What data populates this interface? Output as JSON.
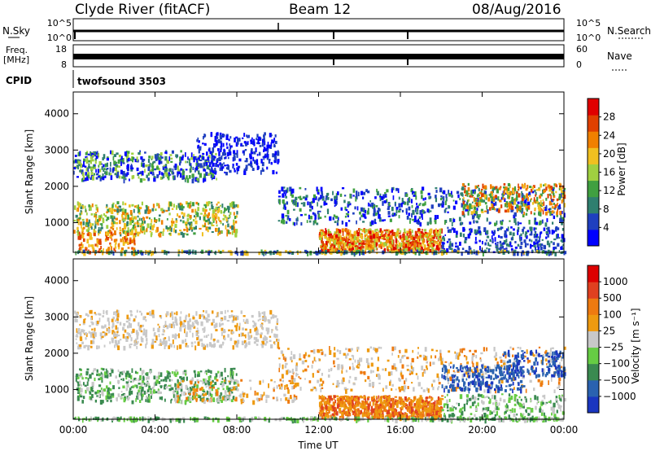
{
  "header": {
    "station": "Clyde River (fitACF)",
    "beam": "Beam 12",
    "date": "08/Aug/2016"
  },
  "panels": {
    "nsky_label": "N.Sky",
    "nsearch_label": "N.Search",
    "nsky_ticks": [
      "10^5",
      "10^0"
    ],
    "nsearch_ticks": [
      "10^5",
      "10^0"
    ],
    "freq_label_1": "Freq.",
    "freq_label_2": "[MHz]",
    "freq_ticks": [
      "18",
      "8"
    ],
    "nave_label": "Nave",
    "nave_ticks": [
      "60",
      "0"
    ],
    "cpid_label": "CPID",
    "cpid_value": "twofsound 3503"
  },
  "colors": {
    "power_scale": [
      "#0000ff",
      "#1f3fbf",
      "#2f7f6f",
      "#40a040",
      "#a0d040",
      "#f0c020",
      "#f08000",
      "#e04000",
      "#e00000"
    ],
    "velocity_scale": [
      "#1a36c0",
      "#2a62b0",
      "#3a8a50",
      "#66cc44",
      "#c8c8c8",
      "#ee9a10",
      "#ee7a10",
      "#e04020",
      "#dd0000"
    ]
  },
  "chart_data": [
    {
      "type": "heatmap",
      "title": "Power",
      "xlabel": "",
      "ylabel": "Slant Range [km]",
      "x_ticks": [
        "00:00",
        "04:00",
        "08:00",
        "12:00",
        "16:00",
        "20:00",
        "00:00"
      ],
      "y_ticks": [
        "1000",
        "2000",
        "3000",
        "4000"
      ],
      "xlim": [
        0,
        24
      ],
      "ylim": [
        180,
        4600
      ],
      "colorbar": {
        "label": "Power [dB]",
        "ticks": [
          "4",
          "8",
          "12",
          "16",
          "20",
          "24",
          "28"
        ],
        "range": [
          0,
          32
        ]
      }
    },
    {
      "type": "heatmap",
      "title": "Velocity",
      "xlabel": "Time UT",
      "ylabel": "Slant Range [km]",
      "x_ticks": [
        "00:00",
        "04:00",
        "08:00",
        "12:00",
        "16:00",
        "20:00",
        "00:00"
      ],
      "y_ticks": [
        "1000",
        "2000",
        "3000",
        "4000"
      ],
      "xlim": [
        0,
        24
      ],
      "ylim": [
        180,
        4600
      ],
      "colorbar": {
        "label": "Velocity [m s⁻¹]",
        "ticks": [
          "1000",
          "500",
          "100",
          "25",
          "−25",
          "−100",
          "−500",
          "−1000"
        ]
      }
    }
  ]
}
